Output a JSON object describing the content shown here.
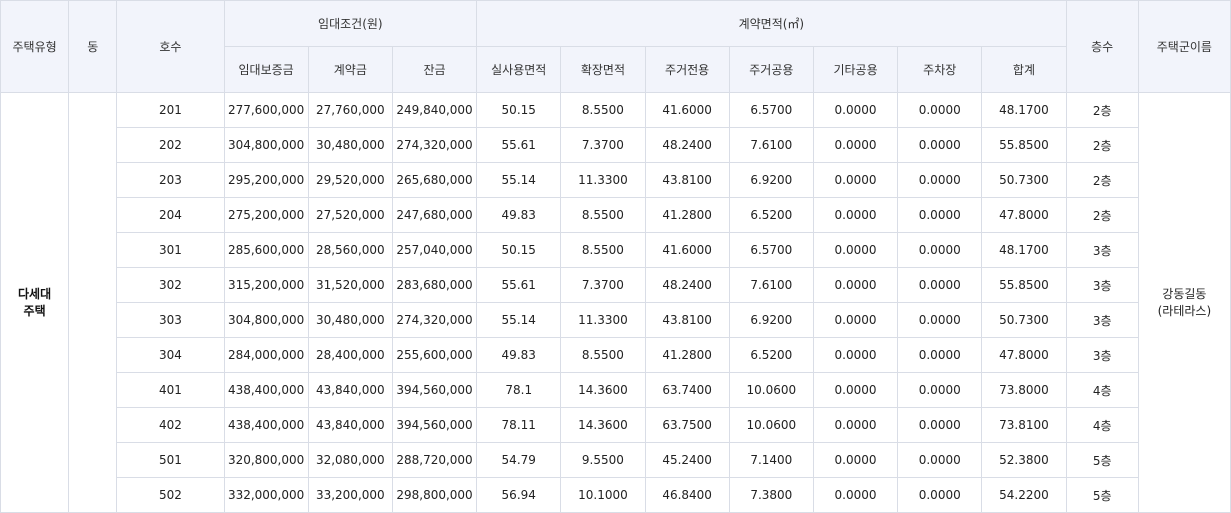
{
  "headers": {
    "house_type": "주택유형",
    "dong": "동",
    "unit_no": "호수",
    "lease_group": "임대조건(원)",
    "deposit": "임대보증금",
    "contract_fee": "계약금",
    "balance": "잔금",
    "area_group": "계약면적(㎡)",
    "actual_area": "실사용면적",
    "extension_area": "확장면적",
    "private_area": "주거전용",
    "common_area": "주거공용",
    "other_common": "기타공용",
    "parking": "주차장",
    "total": "합계",
    "floor": "층수",
    "complex_name": "주택군이름"
  },
  "house_type_lines": [
    "다세대",
    "주택"
  ],
  "dong_value": "",
  "complex_name_lines": [
    "강동길동",
    "(라테라스)"
  ],
  "rows": [
    {
      "unit": "201",
      "deposit": "277,600,000",
      "contract": "27,760,000",
      "balance": "249,840,000",
      "actual": "50.15",
      "extension": "8.5500",
      "private": "41.6000",
      "common": "6.5700",
      "other": "0.0000",
      "parking": "0.0000",
      "total": "48.1700",
      "floor": "2층"
    },
    {
      "unit": "202",
      "deposit": "304,800,000",
      "contract": "30,480,000",
      "balance": "274,320,000",
      "actual": "55.61",
      "extension": "7.3700",
      "private": "48.2400",
      "common": "7.6100",
      "other": "0.0000",
      "parking": "0.0000",
      "total": "55.8500",
      "floor": "2층"
    },
    {
      "unit": "203",
      "deposit": "295,200,000",
      "contract": "29,520,000",
      "balance": "265,680,000",
      "actual": "55.14",
      "extension": "11.3300",
      "private": "43.8100",
      "common": "6.9200",
      "other": "0.0000",
      "parking": "0.0000",
      "total": "50.7300",
      "floor": "2층"
    },
    {
      "unit": "204",
      "deposit": "275,200,000",
      "contract": "27,520,000",
      "balance": "247,680,000",
      "actual": "49.83",
      "extension": "8.5500",
      "private": "41.2800",
      "common": "6.5200",
      "other": "0.0000",
      "parking": "0.0000",
      "total": "47.8000",
      "floor": "2층"
    },
    {
      "unit": "301",
      "deposit": "285,600,000",
      "contract": "28,560,000",
      "balance": "257,040,000",
      "actual": "50.15",
      "extension": "8.5500",
      "private": "41.6000",
      "common": "6.5700",
      "other": "0.0000",
      "parking": "0.0000",
      "total": "48.1700",
      "floor": "3층"
    },
    {
      "unit": "302",
      "deposit": "315,200,000",
      "contract": "31,520,000",
      "balance": "283,680,000",
      "actual": "55.61",
      "extension": "7.3700",
      "private": "48.2400",
      "common": "7.6100",
      "other": "0.0000",
      "parking": "0.0000",
      "total": "55.8500",
      "floor": "3층"
    },
    {
      "unit": "303",
      "deposit": "304,800,000",
      "contract": "30,480,000",
      "balance": "274,320,000",
      "actual": "55.14",
      "extension": "11.3300",
      "private": "43.8100",
      "common": "6.9200",
      "other": "0.0000",
      "parking": "0.0000",
      "total": "50.7300",
      "floor": "3층"
    },
    {
      "unit": "304",
      "deposit": "284,000,000",
      "contract": "28,400,000",
      "balance": "255,600,000",
      "actual": "49.83",
      "extension": "8.5500",
      "private": "41.2800",
      "common": "6.5200",
      "other": "0.0000",
      "parking": "0.0000",
      "total": "47.8000",
      "floor": "3층"
    },
    {
      "unit": "401",
      "deposit": "438,400,000",
      "contract": "43,840,000",
      "balance": "394,560,000",
      "actual": "78.1",
      "extension": "14.3600",
      "private": "63.7400",
      "common": "10.0600",
      "other": "0.0000",
      "parking": "0.0000",
      "total": "73.8000",
      "floor": "4층"
    },
    {
      "unit": "402",
      "deposit": "438,400,000",
      "contract": "43,840,000",
      "balance": "394,560,000",
      "actual": "78.11",
      "extension": "14.3600",
      "private": "63.7500",
      "common": "10.0600",
      "other": "0.0000",
      "parking": "0.0000",
      "total": "73.8100",
      "floor": "4층"
    },
    {
      "unit": "501",
      "deposit": "320,800,000",
      "contract": "32,080,000",
      "balance": "288,720,000",
      "actual": "54.79",
      "extension": "9.5500",
      "private": "45.2400",
      "common": "7.1400",
      "other": "0.0000",
      "parking": "0.0000",
      "total": "52.3800",
      "floor": "5층"
    },
    {
      "unit": "502",
      "deposit": "332,000,000",
      "contract": "33,200,000",
      "balance": "298,800,000",
      "actual": "56.94",
      "extension": "10.1000",
      "private": "46.8400",
      "common": "7.3800",
      "other": "0.0000",
      "parking": "0.0000",
      "total": "54.2200",
      "floor": "5층"
    }
  ]
}
